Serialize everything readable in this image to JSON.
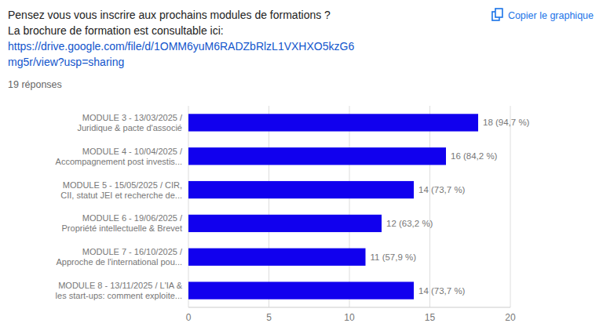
{
  "chart_data": {
    "type": "bar",
    "orientation": "horizontal",
    "title": "Pensez vous vous inscrire aux prochains modules de formations ?",
    "subtitle": "La brochure de formation est consultable ici:",
    "annotations": [
      "https://drive.google.com/file/d/1OMM6yuM6RADZbRlzL1VXHXO5kzG6",
      "mg5r/view?usp=sharing",
      "19 réponses",
      "Copier le graphique"
    ],
    "categories": [
      "MODULE 3 - 13/03/2025 /\nJuridique & pacte d'associé",
      "MODULE 4 - 10/04/2025 /\nAccompagnement post investis...",
      "MODULE 5 - 15/05/2025 / CIR,\nCII, statut JEI et recherche de...",
      "MODULE 6 - 19/06/2025 /\nPropriété intellectuelle & Brevet",
      "MODULE 7 - 16/10/2025 /\nApproche de l'international pou...",
      "MODULE 8 - 13/11/2025 / L'IA &\nles start-ups: comment exploite..."
    ],
    "values": [
      18,
      16,
      14,
      12,
      11,
      14
    ],
    "value_labels": [
      "18 (94,7 %)",
      "16 (84,2 %)",
      "14 (73,7 %)",
      "12 (63,2 %)",
      "11 (57,9 %)",
      "14 (73,7 %)"
    ],
    "data_labels": true,
    "color": "#1100ee",
    "xlim": [
      0,
      20
    ],
    "xticks": [
      0,
      5,
      10,
      15,
      20
    ],
    "grid": true
  }
}
